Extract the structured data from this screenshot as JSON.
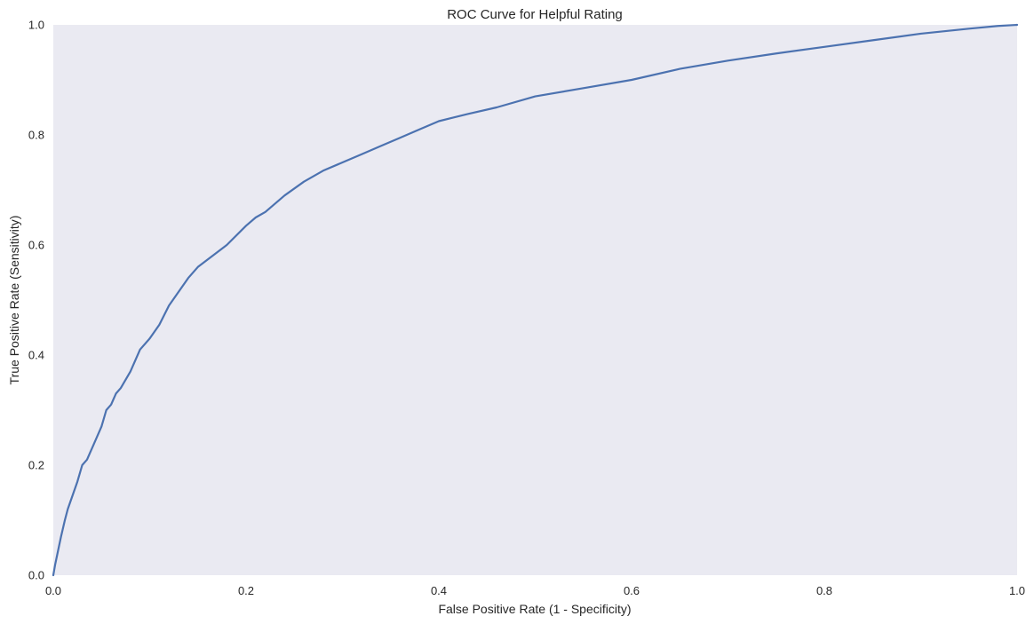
{
  "chart_data": {
    "type": "line",
    "title": "ROC Curve for Helpful Rating",
    "xlabel": "False Positive Rate (1 - Specificity)",
    "ylabel": "True Positive Rate (Sensitivity)",
    "xlim": [
      0.0,
      1.0
    ],
    "ylim": [
      0.0,
      1.0
    ],
    "grid": false,
    "legend": "none",
    "x_ticks": [
      "0.0",
      "0.2",
      "0.4",
      "0.6",
      "0.8",
      "1.0"
    ],
    "y_ticks": [
      "0.0",
      "0.2",
      "0.4",
      "0.6",
      "0.8",
      "1.0"
    ],
    "colors": {
      "plot_background": "#eaeaf2",
      "line": "#4c72b0"
    },
    "series": [
      {
        "x": [
          0.0,
          0.002,
          0.005,
          0.008,
          0.012,
          0.015,
          0.02,
          0.025,
          0.03,
          0.035,
          0.04,
          0.05,
          0.055,
          0.06,
          0.065,
          0.07,
          0.08,
          0.09,
          0.1,
          0.11,
          0.12,
          0.13,
          0.14,
          0.15,
          0.165,
          0.18,
          0.2,
          0.21,
          0.22,
          0.24,
          0.26,
          0.28,
          0.3,
          0.32,
          0.34,
          0.36,
          0.38,
          0.4,
          0.43,
          0.46,
          0.5,
          0.55,
          0.6,
          0.65,
          0.7,
          0.75,
          0.8,
          0.85,
          0.9,
          0.95,
          0.98,
          1.0
        ],
        "y": [
          0.0,
          0.02,
          0.045,
          0.07,
          0.1,
          0.12,
          0.145,
          0.17,
          0.2,
          0.21,
          0.23,
          0.27,
          0.3,
          0.31,
          0.33,
          0.34,
          0.37,
          0.41,
          0.43,
          0.455,
          0.49,
          0.515,
          0.54,
          0.56,
          0.58,
          0.6,
          0.635,
          0.65,
          0.66,
          0.69,
          0.715,
          0.735,
          0.75,
          0.765,
          0.78,
          0.795,
          0.81,
          0.825,
          0.838,
          0.85,
          0.87,
          0.885,
          0.9,
          0.92,
          0.935,
          0.948,
          0.96,
          0.972,
          0.984,
          0.993,
          0.998,
          1.0
        ]
      }
    ]
  }
}
